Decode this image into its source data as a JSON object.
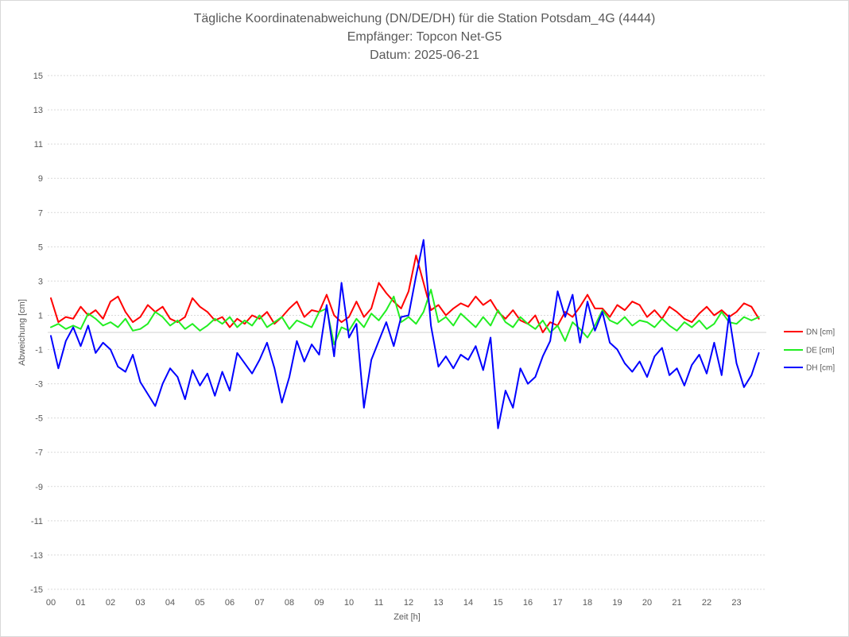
{
  "chart_data": {
    "type": "line",
    "title": "Tägliche Koordinatenabweichung (DN/DE/DH) für die Station Potsdam_4G (4444)",
    "subtitle_lines": [
      "Empfänger: Topcon Net-G5",
      "Datum: 2025-06-21"
    ],
    "xlabel": "Zeit [h]",
    "ylabel": "Abweichung [cm]",
    "xlim": [
      0,
      24
    ],
    "ylim": [
      -15,
      15
    ],
    "xtick_labels": [
      "00",
      "01",
      "02",
      "03",
      "04",
      "05",
      "06",
      "07",
      "08",
      "09",
      "10",
      "11",
      "12",
      "13",
      "14",
      "15",
      "16",
      "17",
      "18",
      "19",
      "20",
      "21",
      "22",
      "23"
    ],
    "yticks": [
      15,
      13,
      11,
      9,
      7,
      5,
      3,
      1,
      -1,
      -3,
      -5,
      -7,
      -9,
      -11,
      -13,
      -15
    ],
    "grid": true,
    "legend": "right",
    "x": [
      0,
      0.25,
      0.5,
      0.75,
      1,
      1.25,
      1.5,
      1.75,
      2,
      2.25,
      2.5,
      2.75,
      3,
      3.25,
      3.5,
      3.75,
      4,
      4.25,
      4.5,
      4.75,
      5,
      5.25,
      5.5,
      5.75,
      6,
      6.25,
      6.5,
      6.75,
      7,
      7.25,
      7.5,
      7.75,
      8,
      8.25,
      8.5,
      8.75,
      9,
      9.25,
      9.5,
      9.75,
      10,
      10.25,
      10.5,
      10.75,
      11,
      11.25,
      11.5,
      11.75,
      12,
      12.25,
      12.5,
      12.75,
      13,
      13.25,
      13.5,
      13.75,
      14,
      14.25,
      14.5,
      14.75,
      15,
      15.25,
      15.5,
      15.75,
      16,
      16.25,
      16.5,
      16.75,
      17,
      17.25,
      17.5,
      17.75,
      18,
      18.25,
      18.5,
      18.75,
      19,
      19.25,
      19.5,
      19.75,
      20,
      20.25,
      20.5,
      20.75,
      21,
      21.25,
      21.5,
      21.75,
      22,
      22.25,
      22.5,
      22.75,
      23,
      23.25,
      23.5,
      23.75
    ],
    "series": [
      {
        "name": "DN [cm]",
        "color": "#ff0000",
        "values": [
          2.0,
          0.6,
          0.9,
          0.8,
          1.5,
          1.0,
          1.3,
          0.8,
          1.8,
          2.1,
          1.2,
          0.6,
          0.9,
          1.6,
          1.2,
          1.5,
          0.8,
          0.6,
          0.9,
          2.0,
          1.5,
          1.2,
          0.7,
          0.9,
          0.3,
          0.8,
          0.5,
          1.0,
          0.8,
          1.2,
          0.5,
          0.9,
          1.4,
          1.8,
          0.9,
          1.3,
          1.2,
          2.2,
          1.0,
          0.6,
          0.9,
          1.8,
          0.9,
          1.4,
          2.9,
          2.3,
          1.8,
          1.4,
          2.4,
          4.5,
          2.9,
          1.3,
          1.6,
          1.0,
          1.4,
          1.7,
          1.5,
          2.1,
          1.6,
          1.9,
          1.2,
          0.8,
          1.3,
          0.7,
          0.5,
          1.0,
          0.0,
          0.6,
          0.4,
          1.2,
          0.9,
          1.5,
          2.2,
          1.4,
          1.4,
          0.9,
          1.6,
          1.3,
          1.8,
          1.6,
          0.9,
          1.3,
          0.8,
          1.5,
          1.2,
          0.8,
          0.6,
          1.1,
          1.5,
          1.0,
          1.3,
          0.9,
          1.2,
          1.7,
          1.5,
          0.8
        ]
      },
      {
        "name": "DE [cm]",
        "color": "#22ee22",
        "values": [
          0.3,
          0.5,
          0.2,
          0.4,
          0.2,
          1.1,
          0.8,
          0.4,
          0.6,
          0.3,
          0.8,
          0.1,
          0.2,
          0.5,
          1.2,
          0.9,
          0.4,
          0.7,
          0.2,
          0.5,
          0.1,
          0.4,
          0.8,
          0.5,
          0.9,
          0.3,
          0.7,
          0.4,
          1.0,
          0.3,
          0.6,
          0.9,
          0.2,
          0.7,
          0.5,
          0.3,
          1.2,
          1.4,
          -0.7,
          0.3,
          0.1,
          0.8,
          0.3,
          1.1,
          0.7,
          1.3,
          2.1,
          0.6,
          0.9,
          0.5,
          1.2,
          2.5,
          0.6,
          0.9,
          0.4,
          1.1,
          0.7,
          0.3,
          0.9,
          0.4,
          1.3,
          0.6,
          0.3,
          0.9,
          0.5,
          0.2,
          0.7,
          0.0,
          0.4,
          -0.5,
          0.6,
          0.2,
          -0.3,
          0.4,
          1.3,
          0.7,
          0.5,
          0.9,
          0.4,
          0.7,
          0.6,
          0.3,
          0.8,
          0.4,
          0.1,
          0.6,
          0.3,
          0.7,
          0.2,
          0.5,
          1.2,
          0.6,
          0.5,
          0.9,
          0.7,
          0.9
        ]
      },
      {
        "name": "DH [cm]",
        "color": "#0000ff",
        "values": [
          -0.2,
          -2.1,
          -0.5,
          0.3,
          -0.8,
          0.4,
          -1.2,
          -0.6,
          -1.0,
          -2.0,
          -2.3,
          -1.3,
          -2.9,
          -3.6,
          -4.3,
          -3.0,
          -2.1,
          -2.6,
          -3.9,
          -2.2,
          -3.1,
          -2.4,
          -3.7,
          -2.3,
          -3.4,
          -1.2,
          -1.8,
          -2.4,
          -1.6,
          -0.6,
          -2.1,
          -4.1,
          -2.6,
          -0.5,
          -1.7,
          -0.7,
          -1.3,
          1.6,
          -1.4,
          2.9,
          -0.3,
          0.5,
          -4.4,
          -1.6,
          -0.5,
          0.6,
          -0.8,
          0.9,
          1.0,
          3.3,
          5.4,
          0.4,
          -2.0,
          -1.4,
          -2.1,
          -1.3,
          -1.6,
          -0.8,
          -2.2,
          -0.3,
          -5.6,
          -3.4,
          -4.4,
          -2.1,
          -3.0,
          -2.6,
          -1.4,
          -0.5,
          2.4,
          0.9,
          2.2,
          -0.6,
          1.8,
          0.1,
          1.2,
          -0.6,
          -1.0,
          -1.8,
          -2.3,
          -1.7,
          -2.6,
          -1.4,
          -0.9,
          -2.5,
          -2.1,
          -3.1,
          -1.9,
          -1.3,
          -2.4,
          -0.6,
          -2.5,
          1.0,
          -1.8,
          -3.2,
          -2.5,
          -1.2
        ]
      }
    ]
  }
}
